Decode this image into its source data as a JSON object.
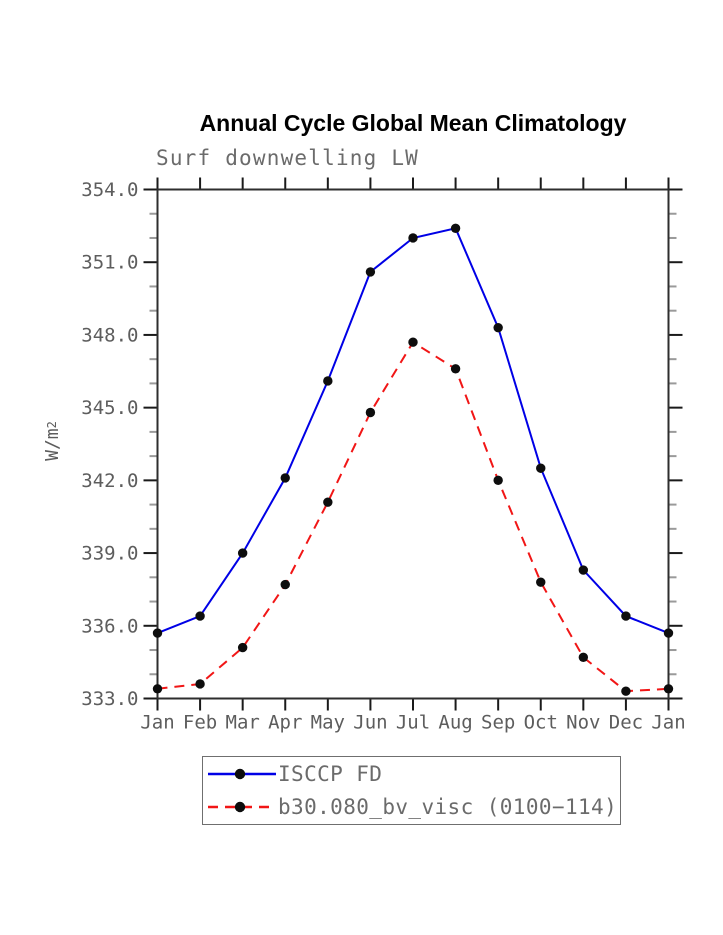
{
  "chart_data": {
    "type": "line",
    "title": "Annual Cycle Global Mean Climatology",
    "subtitle": "Surf downwelling LW",
    "ylabel": "W/m^2",
    "ylabel_base": "W/m",
    "ylabel_exp": "2",
    "xlabel": "",
    "x_categories": [
      "Jan",
      "Feb",
      "Mar",
      "Apr",
      "May",
      "Jun",
      "Jul",
      "Aug",
      "Sep",
      "Oct",
      "Nov",
      "Dec",
      "Jan"
    ],
    "ylim": [
      333.0,
      354.0
    ],
    "ytick_step": 3.0,
    "ytick_minor_step": 1.0,
    "ytick_labels": [
      "354.0",
      "351.0",
      "348.0",
      "345.0",
      "342.0",
      "339.0",
      "336.0",
      "333.0"
    ],
    "grid": false,
    "legend_position": "below-plot-boxed",
    "series": [
      {
        "name": "ISCCP FD",
        "color": "#0000e6",
        "line_style": "solid",
        "marker": "black-dot",
        "values": [
          335.7,
          336.4,
          339.0,
          342.1,
          346.1,
          350.6,
          352.0,
          352.4,
          348.3,
          342.5,
          338.3,
          336.4,
          335.7
        ]
      },
      {
        "name": "b30.080_bv_visc (0100−114)",
        "color": "#f11616",
        "line_style": "dashed",
        "marker": "black-dot",
        "values": [
          333.4,
          333.6,
          335.1,
          337.7,
          341.1,
          344.8,
          347.7,
          346.6,
          342.0,
          337.8,
          334.7,
          333.3,
          333.4
        ]
      }
    ],
    "colors": {
      "marker": "#0d0d0d",
      "axis": "#2e2e2e",
      "tick_major": "#1a1a1a",
      "tick_minor": "#9a9a9a",
      "tick_text": "#5d5d5d"
    }
  }
}
